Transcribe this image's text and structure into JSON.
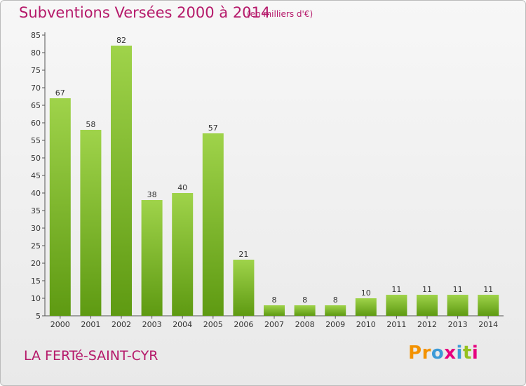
{
  "header": {
    "title": "Subventions Versées 2000 à 2014",
    "subtitle": "(en milliers d'€)"
  },
  "footer": {
    "place": "LA FERTé-SAINT-CYR",
    "brand": "Proxiti",
    "brand_letters": [
      "P",
      "r",
      "o",
      "x",
      "i",
      "t",
      "i"
    ],
    "brand_colors": [
      "#f39200",
      "#f39200",
      "#3c9ad7",
      "#e6007e",
      "#3c9ad7",
      "#95c11f",
      "#e6007e"
    ]
  },
  "colors": {
    "bar_top": "#9fd34a",
    "bar_bottom": "#5e9a12",
    "accent": "#b5196a"
  },
  "chart_data": {
    "type": "bar",
    "title": "Subventions Versées 2000 à 2014",
    "subtitle": "(en milliers d'€)",
    "categories": [
      "2000",
      "2001",
      "2002",
      "2003",
      "2004",
      "2005",
      "2006",
      "2007",
      "2008",
      "2009",
      "2010",
      "2011",
      "2012",
      "2013",
      "2014"
    ],
    "values": [
      67,
      58,
      82,
      38,
      40,
      57,
      21,
      8,
      8,
      8,
      10,
      11,
      11,
      11,
      11
    ],
    "ylim": [
      5,
      85
    ],
    "yticks": [
      5,
      10,
      15,
      20,
      25,
      30,
      35,
      40,
      45,
      50,
      55,
      60,
      65,
      70,
      75,
      80,
      85
    ],
    "grid": false,
    "xlabel": "",
    "ylabel": ""
  }
}
